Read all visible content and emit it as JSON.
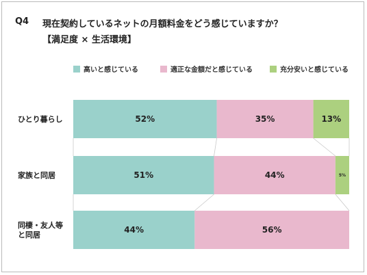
{
  "header": {
    "question": "Q4",
    "title": "現在契約しているネットの月額料金をどう感じていますか？",
    "subtitle": "【満足度 × 生活環境】"
  },
  "legend": [
    {
      "label": "高いと感じている",
      "color": "#9ad1cb"
    },
    {
      "label": "適正な金額だと感じている",
      "color": "#e9b8cd"
    },
    {
      "label": "充分安いと感じている",
      "color": "#acd07f"
    }
  ],
  "chart_data": {
    "type": "bar",
    "orientation": "horizontal",
    "stacked": true,
    "normalized_percent": true,
    "categories": [
      [
        "ひとり暮らし"
      ],
      [
        "家族と同居"
      ],
      [
        "同棲・友人等",
        "と同居"
      ]
    ],
    "series": [
      {
        "name": "高いと感じている",
        "values": [
          52,
          51,
          44
        ],
        "labels": [
          "52%",
          "51%",
          "44%"
        ],
        "color": "#9ad1cb"
      },
      {
        "name": "適正な金額だと感じている",
        "values": [
          35,
          44,
          56
        ],
        "labels": [
          "35%",
          "44%",
          "56%"
        ],
        "color": "#e9b8cd"
      },
      {
        "name": "充分安いと感じている",
        "values": [
          13,
          5,
          0
        ],
        "labels": [
          "13%",
          "5%",
          ""
        ],
        "color": "#acd07f"
      }
    ],
    "xlim": [
      0,
      100
    ],
    "legend_position": "top",
    "grid": false
  }
}
